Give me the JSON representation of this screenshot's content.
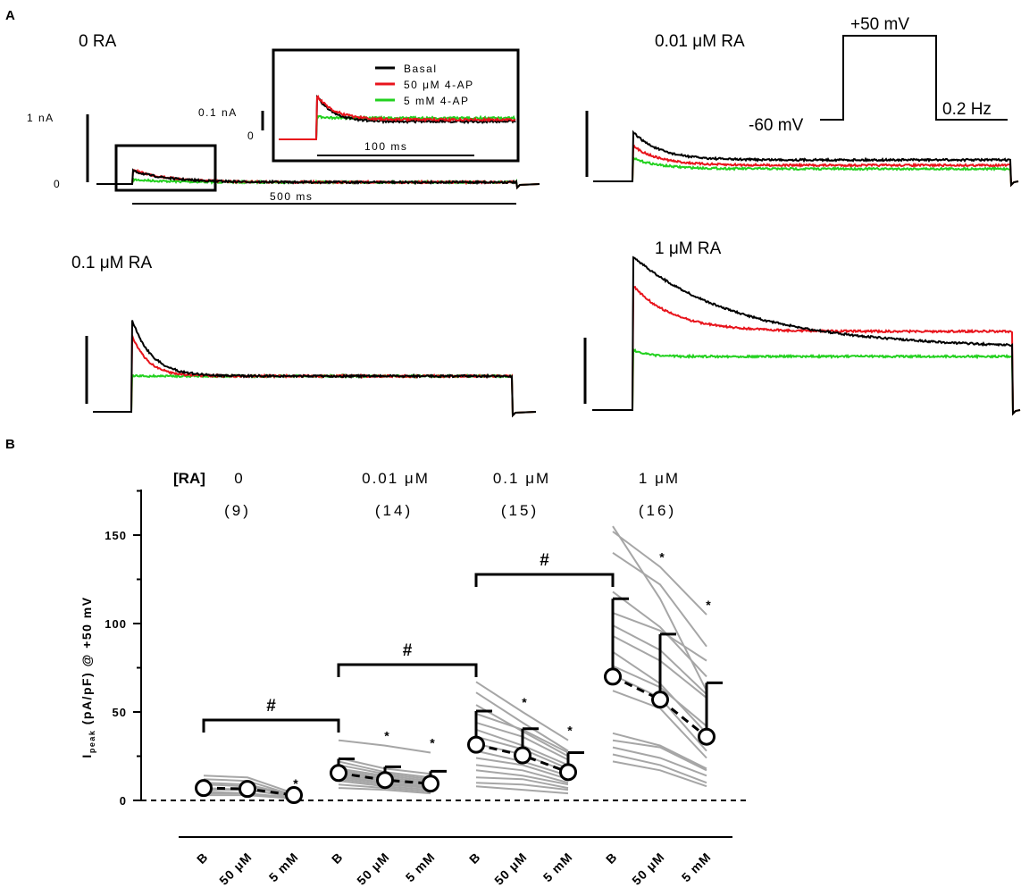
{
  "panel_a": {
    "letter": "A",
    "titles": [
      "0 RA",
      "0.01 μM RA",
      "0.1 μM RA",
      "1 μM RA"
    ],
    "scale_1na": "1 nA",
    "zero_label": "0",
    "scale_500ms": "500 ms",
    "inset": {
      "scale_label": "0.1 nA",
      "zero_label": "0",
      "time_label": "100 ms"
    },
    "legend": [
      "Basal",
      "50 μM 4-AP",
      "5 mM 4-AP"
    ],
    "protocol": {
      "top": "+50 mV",
      "hold": "-60 mV",
      "freq": "0.2 Hz"
    },
    "colors": {
      "basal": "#000000",
      "ap50": "#e8141c",
      "ap5mm": "#22d11f"
    }
  },
  "chart_data": {
    "type": "scatter",
    "panel_letter": "B",
    "ylabel_main": "I",
    "ylabel_sub": "peak",
    "ylabel_rest": " (pA/pF) @ +50 mV",
    "ylim": [
      0,
      180
    ],
    "yticks": [
      0,
      50,
      100,
      150
    ],
    "ra_label": "[RA]",
    "x_categories": [
      "B",
      "50 μM",
      "5 mM",
      "B",
      "50 μM",
      "5 mM",
      "B",
      "50 μM",
      "5 mM",
      "B",
      "50 μM",
      "5 mM"
    ],
    "groups": [
      {
        "label": "0",
        "n_label": "(9)",
        "means": [
          7,
          6.5,
          3
        ],
        "sd": [
          null,
          null,
          null
        ],
        "stars": [
          "",
          "",
          "*"
        ]
      },
      {
        "label": "0.01 μM",
        "n_label": "(14)",
        "means": [
          15.5,
          11.5,
          9.5
        ],
        "sd": [
          8,
          7.5,
          7
        ],
        "stars": [
          "",
          "*",
          "*"
        ]
      },
      {
        "label": "0.1 μM",
        "n_label": "(15)",
        "means": [
          31.5,
          25.5,
          16
        ],
        "sd": [
          19,
          15,
          11
        ],
        "stars": [
          "",
          "*",
          "*"
        ]
      },
      {
        "label": "1 μM",
        "n_label": "(16)",
        "means": [
          70,
          57,
          36
        ],
        "sd": [
          44,
          37,
          30.5
        ],
        "stars": [
          "",
          "*",
          "*"
        ]
      }
    ],
    "significance": [
      {
        "from_group": 0,
        "to_group": 1,
        "label": "#"
      },
      {
        "from_group": 1,
        "to_group": 2,
        "label": "#"
      },
      {
        "from_group": 2,
        "to_group": 3,
        "label": "#"
      }
    ],
    "individual_lines": [
      [
        [
          14,
          13,
          4
        ],
        [
          12,
          11,
          3
        ],
        [
          10,
          9,
          3
        ],
        [
          9,
          8,
          2.5
        ],
        [
          7,
          6,
          2
        ],
        [
          6,
          6,
          2
        ],
        [
          5,
          4,
          1.5
        ],
        [
          4,
          4,
          1
        ],
        [
          3,
          3,
          1
        ]
      ],
      [
        [
          34,
          31,
          27
        ],
        [
          24,
          18,
          15
        ],
        [
          22,
          16,
          13
        ],
        [
          20,
          15,
          12
        ],
        [
          18,
          14,
          11
        ],
        [
          17,
          13,
          10
        ],
        [
          16,
          12,
          9
        ],
        [
          15,
          11,
          9
        ],
        [
          14,
          10,
          8
        ],
        [
          13,
          10,
          7
        ],
        [
          12,
          9,
          7
        ],
        [
          11,
          8,
          6
        ],
        [
          9,
          7,
          5
        ],
        [
          7,
          6,
          4
        ]
      ],
      [
        [
          67,
          50,
          34
        ],
        [
          61,
          44,
          28
        ],
        [
          54,
          39,
          25
        ],
        [
          49,
          40,
          27
        ],
        [
          44,
          36,
          23
        ],
        [
          40,
          31,
          20
        ],
        [
          36,
          29,
          18
        ],
        [
          32,
          26,
          16
        ],
        [
          28,
          22,
          14
        ],
        [
          24,
          20,
          12
        ],
        [
          20,
          17,
          10
        ],
        [
          17,
          14,
          9
        ],
        [
          13,
          12,
          7
        ],
        [
          10,
          9,
          6
        ],
        [
          8,
          6,
          4
        ]
      ],
      [
        [
          155,
          114,
          62
        ],
        [
          152,
          132,
          105
        ],
        [
          140,
          122,
          87
        ],
        [
          118,
          98,
          70
        ],
        [
          106,
          96,
          79
        ],
        [
          99,
          85,
          60
        ],
        [
          93,
          79,
          58
        ],
        [
          84,
          66,
          38
        ],
        [
          76,
          64,
          42
        ],
        [
          71,
          58,
          28
        ],
        [
          62,
          52,
          24
        ],
        [
          38,
          31,
          18
        ],
        [
          34,
          30,
          17
        ],
        [
          30,
          24,
          14
        ],
        [
          26,
          20,
          10
        ],
        [
          22,
          17,
          8
        ]
      ]
    ]
  }
}
